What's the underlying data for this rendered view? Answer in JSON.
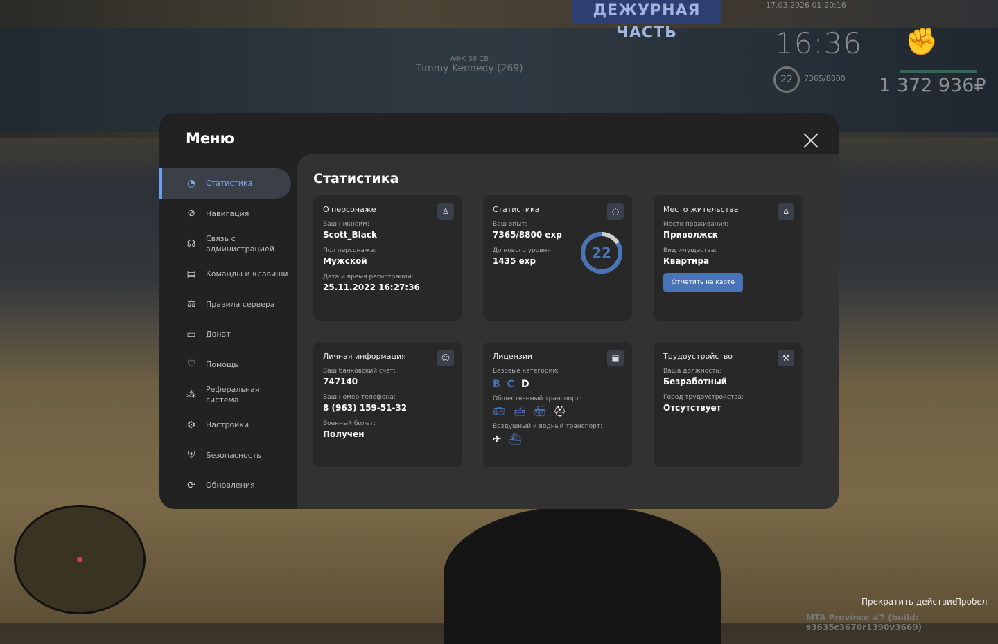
{
  "scene": {
    "banner": "ДЕЖУРНАЯ ЧАСТЬ"
  },
  "hud": {
    "datetime": "17.03.2026 01:20:16",
    "clock": "16:36",
    "level": "22",
    "exp": "7365/8800",
    "money": "1 372 936₽",
    "health_color": "#2f6b4e",
    "fist_icon": "fist-icon"
  },
  "nametag": {
    "status": "АФК 36 СВ",
    "name": "Timmy Kennedy (269)"
  },
  "prompts": {
    "action": "Прекратить действие",
    "key": "Пробел"
  },
  "build": "MTA Province #7 (build: s3635c3670r1390v3669)",
  "menu": {
    "title": "Меню",
    "close_icon": "close-icon",
    "sidebar": [
      {
        "label": "Статистика",
        "icon": "pie-chart-icon",
        "active": true
      },
      {
        "label": "Навигация",
        "icon": "compass-icon"
      },
      {
        "label": "Связь с администрацией",
        "icon": "headset-icon"
      },
      {
        "label": "Команды и клавиши",
        "icon": "document-icon"
      },
      {
        "label": "Правила сервера",
        "icon": "scales-icon"
      },
      {
        "label": "Донат",
        "icon": "wallet-icon"
      },
      {
        "label": "Помощь",
        "icon": "heart-handshake-icon"
      },
      {
        "label": "Реферальная система",
        "icon": "network-icon"
      },
      {
        "label": "Настройки",
        "icon": "gear-icon"
      },
      {
        "label": "Безопасность",
        "icon": "shield-icon"
      },
      {
        "label": "Обновления",
        "icon": "refresh-icon"
      }
    ],
    "accent": "#4a74b8"
  },
  "content": {
    "title": "Статистика",
    "character": {
      "title": "О персонаже",
      "nick_label": "Ваш никнейм:",
      "nick": "Scott_Black",
      "sex_label": "Пол персонажа:",
      "sex": "Мужской",
      "reg_label": "Дата и время регистрации:",
      "reg": "25.11.2022 16:27:36"
    },
    "stats": {
      "title": "Статистика",
      "exp_label": "Ваш опыт:",
      "exp": "7365/8800 exp",
      "next_label": "До нового уровня:",
      "next": "1435 exp",
      "level": "22",
      "progress": 0.837
    },
    "residence": {
      "title": "Место жительства",
      "place_label": "Место проживания:",
      "place": "Приволжск",
      "type_label": "Вид имущества:",
      "type": "Квартира",
      "button": "Отметить на карте"
    },
    "personal": {
      "title": "Личная информация",
      "bank_label": "Ваш банковский счет:",
      "bank": "747140",
      "phone_label": "Ваш номер телефона:",
      "phone": "8 (963) 159-51-32",
      "military_label": "Военный билет:",
      "military": "Получен"
    },
    "licenses": {
      "title": "Лицензии",
      "base_label": "Базовые категории:",
      "categories": [
        {
          "l": "B",
          "color": "#4a74b8"
        },
        {
          "l": "C",
          "color": "#4a74b8"
        },
        {
          "l": "D",
          "color": "#ffffff"
        }
      ],
      "public_label": "Общественный транспорт:",
      "public_icons": [
        {
          "icon": "bus-icon",
          "color": "#4a74b8"
        },
        {
          "icon": "trolleybus-icon",
          "color": "#4a74b8"
        },
        {
          "icon": "tram-icon",
          "color": "#4a74b8"
        },
        {
          "icon": "driver-cap-icon",
          "color": "#ffffff"
        }
      ],
      "air_label": "Воздушный и водный транспорт:",
      "air_icons": [
        {
          "icon": "plane-icon",
          "color": "#ffffff"
        },
        {
          "icon": "ship-icon",
          "color": "#4a74b8"
        }
      ]
    },
    "job": {
      "title": "Трудоустройство",
      "pos_label": "Ваша должность:",
      "pos": "Безработный",
      "city_label": "Город трудоустройства:",
      "city": "Отсутствует"
    }
  }
}
